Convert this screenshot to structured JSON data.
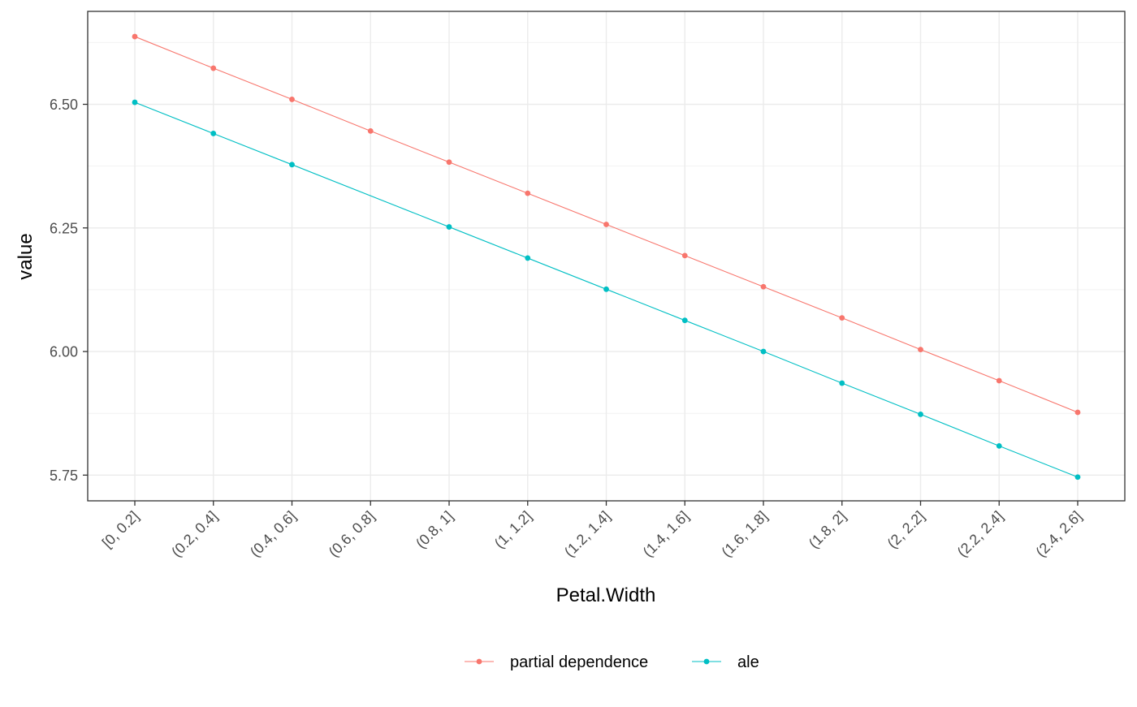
{
  "chart_data": {
    "type": "line",
    "title": "",
    "xlabel": "Petal.Width",
    "ylabel": "value",
    "categories": [
      "[0, 0.2]",
      "(0.2, 0.4]",
      "(0.4, 0.6]",
      "(0.6, 0.8]",
      "(0.8, 1]",
      "(1, 1.2]",
      "(1.2, 1.4]",
      "(1.4, 1.6]",
      "(1.6, 1.8]",
      "(1.8, 2]",
      "(2, 2.2]",
      "(2.2, 2.4]",
      "(2.4, 2.6]"
    ],
    "ylim": [
      5.698,
      6.688
    ],
    "yticks": [
      5.75,
      6.0,
      6.25,
      6.5
    ],
    "ytick_labels": [
      "5.75",
      "6.00",
      "6.25",
      "6.50"
    ],
    "grid": true,
    "legend_position": "bottom",
    "series": [
      {
        "name": "partial dependence",
        "color": "#F8766D",
        "points": [
          {
            "category": "[0, 0.2]",
            "value": 6.637
          },
          {
            "category": "(0.2, 0.4]",
            "value": 6.573
          },
          {
            "category": "(0.4, 0.6]",
            "value": 6.51
          },
          {
            "category": "(0.6, 0.8]",
            "value": 6.446
          },
          {
            "category": "(0.8, 1]",
            "value": 6.383
          },
          {
            "category": "(1, 1.2]",
            "value": 6.32
          },
          {
            "category": "(1.2, 1.4]",
            "value": 6.257
          },
          {
            "category": "(1.4, 1.6]",
            "value": 6.194
          },
          {
            "category": "(1.6, 1.8]",
            "value": 6.131
          },
          {
            "category": "(1.8, 2]",
            "value": 6.068
          },
          {
            "category": "(2, 2.2]",
            "value": 6.004
          },
          {
            "category": "(2.2, 2.4]",
            "value": 5.941
          },
          {
            "category": "(2.4, 2.6]",
            "value": 5.877
          }
        ]
      },
      {
        "name": "ale",
        "color": "#00BFC4",
        "points": [
          {
            "category": "[0, 0.2]",
            "value": 6.504
          },
          {
            "category": "(0.2, 0.4]",
            "value": 6.441
          },
          {
            "category": "(0.4, 0.6]",
            "value": 6.378
          },
          {
            "category": "(0.8, 1]",
            "value": 6.252
          },
          {
            "category": "(1, 1.2]",
            "value": 6.189
          },
          {
            "category": "(1.2, 1.4]",
            "value": 6.126
          },
          {
            "category": "(1.4, 1.6]",
            "value": 6.063
          },
          {
            "category": "(1.6, 1.8]",
            "value": 6.0
          },
          {
            "category": "(1.8, 2]",
            "value": 5.936
          },
          {
            "category": "(2, 2.2]",
            "value": 5.873
          },
          {
            "category": "(2.2, 2.4]",
            "value": 5.809
          },
          {
            "category": "(2.4, 2.6]",
            "value": 5.746
          }
        ]
      }
    ]
  }
}
